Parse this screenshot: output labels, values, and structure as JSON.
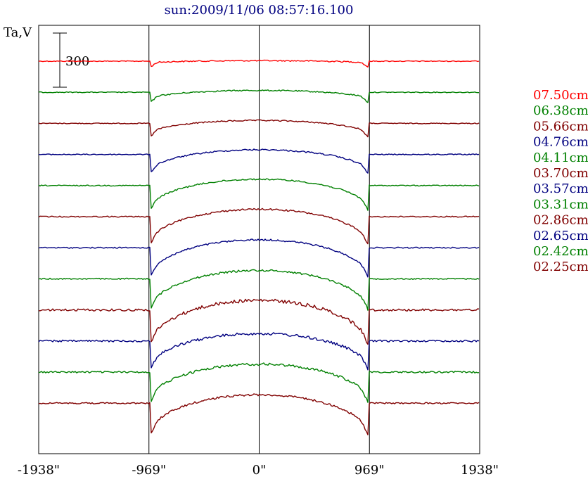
{
  "chart_data": {
    "type": "line",
    "title": "sun:2009/11/06 08:57:16.100",
    "ylabel": "Ta,V",
    "scale_bar_label": "300",
    "scale_bar_value": 300,
    "x_ticks": [
      {
        "value": -1938,
        "label": "-1938\""
      },
      {
        "value": -969,
        "label": "-969\""
      },
      {
        "value": 0,
        "label": "0\""
      },
      {
        "value": 969,
        "label": "969\""
      },
      {
        "value": 1938,
        "label": "1938\""
      }
    ],
    "xlim": [
      -1938,
      1938
    ],
    "vertical_lines_at": [
      -969,
      0,
      969
    ],
    "series": [
      {
        "name": "07.50cm",
        "color": "#ff0000",
        "depth": 0.1,
        "edge_dip": 0.4,
        "noise": 0.6
      },
      {
        "name": "06.38cm",
        "color": "#008000",
        "depth": 0.35,
        "edge_dip": 0.45,
        "noise": 0.6
      },
      {
        "name": "05.66cm",
        "color": "#800000",
        "depth": 0.55,
        "edge_dip": 0.45,
        "noise": 0.6
      },
      {
        "name": "04.76cm",
        "color": "#000080",
        "depth": 0.9,
        "edge_dip": 0.4,
        "noise": 0.7
      },
      {
        "name": "04.11cm",
        "color": "#008000",
        "depth": 1.2,
        "edge_dip": 0.4,
        "noise": 0.7
      },
      {
        "name": "03.70cm",
        "color": "#800000",
        "depth": 1.4,
        "edge_dip": 0.45,
        "noise": 0.8
      },
      {
        "name": "03.57cm",
        "color": "#000080",
        "depth": 1.5,
        "edge_dip": 0.4,
        "noise": 0.8
      },
      {
        "name": "03.31cm",
        "color": "#008000",
        "depth": 1.6,
        "edge_dip": 0.4,
        "noise": 0.9
      },
      {
        "name": "02.86cm",
        "color": "#800000",
        "depth": 1.8,
        "edge_dip": 0.5,
        "noise": 1.6
      },
      {
        "name": "02.65cm",
        "color": "#000080",
        "depth": 1.4,
        "edge_dip": 0.55,
        "noise": 1.3
      },
      {
        "name": "02.42cm",
        "color": "#008000",
        "depth": 1.5,
        "edge_dip": 0.55,
        "noise": 1.2
      },
      {
        "name": "02.25cm",
        "color": "#800000",
        "depth": 1.6,
        "edge_dip": 0.55,
        "noise": 1.0
      }
    ]
  }
}
